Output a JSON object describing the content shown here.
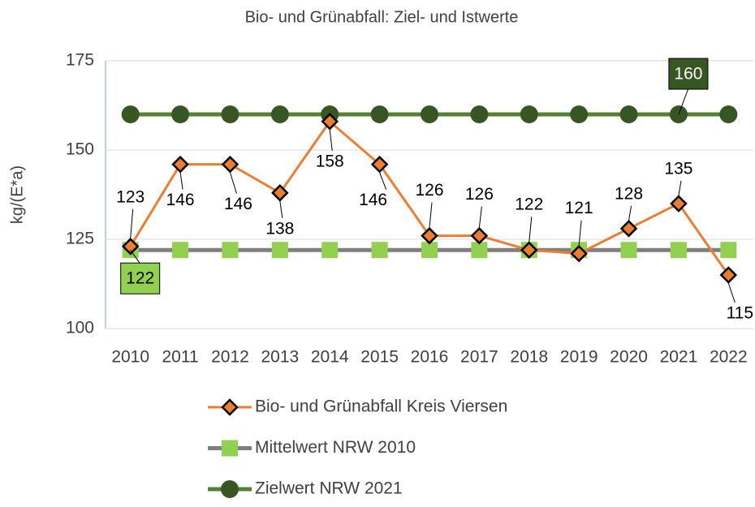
{
  "chart_data": {
    "type": "line",
    "title": "Bio- und Grünabfall: Ziel- und Istwerte",
    "y_label": "kg/(E*a)",
    "categories": [
      "2010",
      "2011",
      "2012",
      "2013",
      "2014",
      "2015",
      "2016",
      "2017",
      "2018",
      "2019",
      "2020",
      "2021",
      "2022"
    ],
    "series": [
      {
        "name": "Bio- und Grünabfall Kreis Viersen",
        "color": "#ed7d31",
        "marker": "diamond",
        "values": [
          123,
          146,
          146,
          138,
          158,
          146,
          126,
          126,
          122,
          121,
          128,
          135,
          115
        ]
      },
      {
        "name": "Mittelwert NRW 2010",
        "color": "#7f7f7f",
        "marker_color": "#92d050",
        "marker": "square",
        "values": [
          122,
          122,
          122,
          122,
          122,
          122,
          122,
          122,
          122,
          122,
          122,
          122,
          122
        ],
        "value_labels": [
          "122",
          null,
          null,
          null,
          null,
          null,
          null,
          null,
          null,
          null,
          null,
          null,
          null
        ]
      },
      {
        "name": "Zielwert NRW 2021",
        "color": "#548235",
        "marker_color": "#375623",
        "marker": "circle",
        "values": [
          160,
          160,
          160,
          160,
          160,
          160,
          160,
          160,
          160,
          160,
          160,
          160,
          160
        ],
        "value_labels": [
          null,
          null,
          null,
          null,
          null,
          null,
          null,
          null,
          null,
          null,
          null,
          "160",
          null
        ]
      }
    ],
    "ylim": [
      100,
      175
    ],
    "yticks": [
      100,
      125,
      150,
      175
    ],
    "grid": true
  }
}
